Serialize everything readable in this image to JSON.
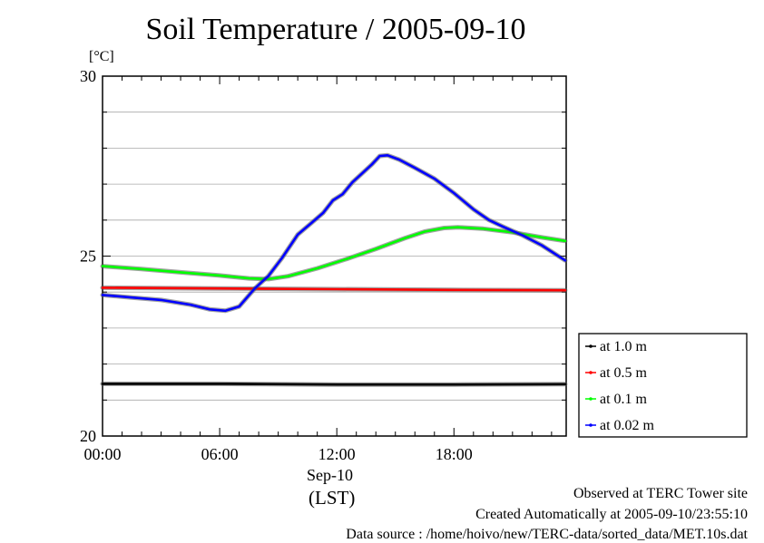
{
  "chart_data": {
    "type": "line",
    "title": "Soil Temperature / 2005-09-10",
    "ylabel": "[°C]",
    "xlabel_line1": "Sep-10",
    "xlabel_line2": "(LST)",
    "ylim": [
      20,
      30
    ],
    "xlim_hours": [
      0,
      23.75
    ],
    "yticks": [
      20,
      25,
      30
    ],
    "ytick_labels": [
      "20",
      "25",
      "30"
    ],
    "xticks_hours": [
      0,
      6,
      12,
      18
    ],
    "xtick_labels": [
      "00:00",
      "06:00",
      "12:00",
      "18:00"
    ],
    "grid": true,
    "legend_position": "right",
    "series": [
      {
        "name": "at 1.0 m",
        "color": "#000000",
        "points": [
          [
            0,
            21.45
          ],
          [
            6,
            21.45
          ],
          [
            12,
            21.43
          ],
          [
            18,
            21.43
          ],
          [
            23.7,
            21.44
          ]
        ]
      },
      {
        "name": "at 0.5 m",
        "color": "#ff0000",
        "points": [
          [
            0,
            24.12
          ],
          [
            6,
            24.1
          ],
          [
            12,
            24.08
          ],
          [
            18,
            24.06
          ],
          [
            23.7,
            24.05
          ]
        ]
      },
      {
        "name": "at 0.1 m",
        "color": "#00ff00",
        "points": [
          [
            0,
            24.72
          ],
          [
            2,
            24.64
          ],
          [
            4,
            24.55
          ],
          [
            6,
            24.46
          ],
          [
            7.5,
            24.38
          ],
          [
            8.5,
            24.36
          ],
          [
            9.5,
            24.44
          ],
          [
            11,
            24.66
          ],
          [
            12.5,
            24.92
          ],
          [
            14,
            25.2
          ],
          [
            15.5,
            25.5
          ],
          [
            16.5,
            25.68
          ],
          [
            17.5,
            25.78
          ],
          [
            18.2,
            25.8
          ],
          [
            19.5,
            25.76
          ],
          [
            21,
            25.66
          ],
          [
            22.5,
            25.52
          ],
          [
            23.7,
            25.42
          ]
        ]
      },
      {
        "name": "at 0.02 m",
        "color": "#0000ff",
        "points": [
          [
            0,
            23.92
          ],
          [
            1.5,
            23.85
          ],
          [
            3,
            23.78
          ],
          [
            4.5,
            23.65
          ],
          [
            5.5,
            23.52
          ],
          [
            6.3,
            23.48
          ],
          [
            7,
            23.6
          ],
          [
            7.8,
            24.1
          ],
          [
            8.5,
            24.45
          ],
          [
            9.2,
            24.95
          ],
          [
            10,
            25.6
          ],
          [
            10.7,
            25.92
          ],
          [
            11.3,
            26.2
          ],
          [
            11.8,
            26.55
          ],
          [
            12.3,
            26.72
          ],
          [
            12.8,
            27.05
          ],
          [
            13.3,
            27.3
          ],
          [
            13.8,
            27.55
          ],
          [
            14.2,
            27.78
          ],
          [
            14.6,
            27.8
          ],
          [
            15.2,
            27.68
          ],
          [
            16,
            27.45
          ],
          [
            17,
            27.15
          ],
          [
            18,
            26.75
          ],
          [
            19,
            26.3
          ],
          [
            19.8,
            26.0
          ],
          [
            20.5,
            25.82
          ],
          [
            21.5,
            25.58
          ],
          [
            22.5,
            25.3
          ],
          [
            23.7,
            24.88
          ]
        ]
      }
    ]
  },
  "footer": {
    "line1": "Observed at TERC Tower site",
    "line2": "Created Automatically at 2005-09-10/23:55:10",
    "line3": "Data source : /home/hoivo/new/TERC-data/sorted_data/MET.10s.dat"
  }
}
